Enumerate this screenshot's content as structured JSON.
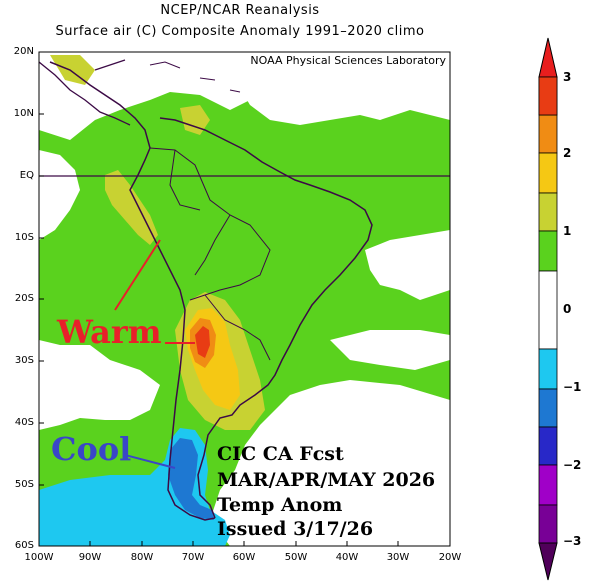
{
  "header": {
    "title_line1": "NCEP/NCAR Reanalysis",
    "title_line2": "Surface air (C) Composite Anomaly 1991–2020 climo"
  },
  "credit": "NOAA Physical Sciences Laboratory",
  "axes": {
    "lat_labels": [
      "20N",
      "10N",
      "EQ",
      "10S",
      "20S",
      "30S",
      "40S",
      "50S",
      "60S"
    ],
    "lon_labels": [
      "100W",
      "90W",
      "80W",
      "70W",
      "60W",
      "50W",
      "40W",
      "30W",
      "20W"
    ]
  },
  "colorbar": {
    "labels": [
      "3",
      "2",
      "1",
      "0",
      "−1",
      "−2",
      "−3"
    ],
    "colors": [
      "#a0000f",
      "#e83c14",
      "#f08c14",
      "#f5c814",
      "#c8d232",
      "#5ad21e",
      "#ffffff",
      "#ffffff",
      "#1ec8f0",
      "#1e78d2",
      "#2828c8",
      "#a000c8",
      "#780096",
      "#50005a"
    ]
  },
  "annotations": {
    "warm": "Warm",
    "cool": "Cool",
    "forecast_lines": [
      "CIC CA Fcst",
      "MAR/APR/MAY 2026",
      "Temp Anom",
      "Issued 3/17/26"
    ]
  },
  "legend_colors": {
    "green": "#5ad21e",
    "yellow_green": "#c8d232",
    "yellow": "#f5c814",
    "orange": "#f08c14",
    "red": "#e83c14",
    "cyan": "#1ec8f0",
    "blue": "#1e78d2",
    "warm_text": "#e8202a",
    "cool_text": "#3a46c8"
  }
}
